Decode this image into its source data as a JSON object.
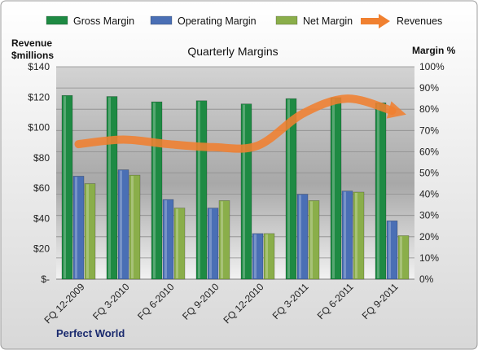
{
  "chart_data": {
    "type": "bar",
    "title": "Quarterly Margins",
    "footer": "Perfect World",
    "categories": [
      "FQ 12-2009",
      "FQ 3-2010",
      "FQ 6-2010",
      "FQ 9-2010",
      "FQ 12-2010",
      "FQ 3-2011",
      "FQ 6-2011",
      "FQ 9-2011"
    ],
    "left_axis": {
      "title_line1": "Revenue",
      "title_line2": "$millions",
      "range": [
        0,
        140
      ],
      "ticks": [
        0,
        20,
        40,
        60,
        80,
        100,
        120,
        140
      ],
      "tick_labels": [
        "$-",
        "$20",
        "$40",
        "$60",
        "$80",
        "$100",
        "$120",
        "$140"
      ]
    },
    "right_axis": {
      "title": "Margin %",
      "range": [
        0,
        100
      ],
      "ticks": [
        0,
        10,
        20,
        30,
        40,
        50,
        60,
        70,
        80,
        90,
        100
      ],
      "tick_labels": [
        "0%",
        "10%",
        "20%",
        "30%",
        "40%",
        "50%",
        "60%",
        "70%",
        "80%",
        "90%",
        "100%"
      ]
    },
    "grid": true,
    "legend_position": "top",
    "series": [
      {
        "name": "Gross Margin",
        "type": "bar",
        "axis": "right",
        "color": "#1e8a43",
        "values": [
          86.5,
          86,
          83.5,
          84,
          82.5,
          85,
          85.5,
          83
        ]
      },
      {
        "name": "Operating Margin",
        "type": "bar",
        "axis": "right",
        "color": "#4a6fb5",
        "values": [
          48.5,
          51.5,
          37.5,
          33.5,
          21.5,
          40,
          41.5,
          27.5
        ]
      },
      {
        "name": "Net Margin",
        "type": "bar",
        "axis": "right",
        "color": "#8aae4a",
        "values": [
          45,
          49,
          33.5,
          37,
          21.5,
          37,
          41,
          20.5
        ]
      },
      {
        "name": "Revenues",
        "type": "line",
        "axis": "left",
        "color": "#f08030",
        "values": [
          89,
          92,
          89,
          87,
          88,
          109,
          119,
          111
        ]
      }
    ]
  }
}
